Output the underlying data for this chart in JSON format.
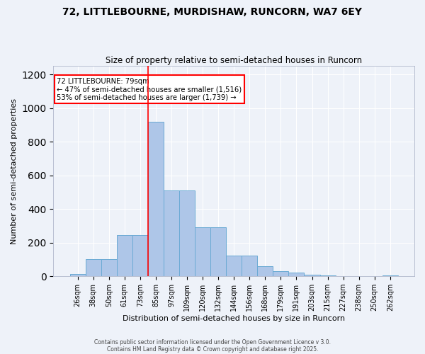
{
  "title1": "72, LITTLEBOURNE, MURDISHAW, RUNCORN, WA7 6EY",
  "title2": "Size of property relative to semi-detached houses in Runcorn",
  "xlabel": "Distribution of semi-detached houses by size in Runcorn",
  "ylabel": "Number of semi-detached properties",
  "categories": [
    "26sqm",
    "38sqm",
    "50sqm",
    "61sqm",
    "73sqm",
    "85sqm",
    "97sqm",
    "109sqm",
    "120sqm",
    "132sqm",
    "144sqm",
    "156sqm",
    "168sqm",
    "179sqm",
    "191sqm",
    "203sqm",
    "215sqm",
    "227sqm",
    "238sqm",
    "250sqm",
    "262sqm"
  ],
  "values": [
    15,
    100,
    100,
    245,
    245,
    920,
    510,
    510,
    290,
    290,
    125,
    125,
    60,
    30,
    20,
    10,
    5,
    3,
    1,
    1,
    5
  ],
  "bar_color": "#aec6e8",
  "bar_edge_color": "#6aaad4",
  "property_label": "72 LITTLEBOURNE: 79sqm",
  "pct_smaller": 47,
  "count_smaller": 1516,
  "pct_larger": 53,
  "count_larger": 1739,
  "ylim": [
    0,
    1250
  ],
  "yticks": [
    0,
    200,
    400,
    600,
    800,
    1000,
    1200
  ],
  "background_color": "#eef2f9",
  "grid_color": "#ffffff",
  "footer1": "Contains HM Land Registry data © Crown copyright and database right 2025.",
  "footer2": "Contains public sector information licensed under the Open Government Licence v 3.0."
}
